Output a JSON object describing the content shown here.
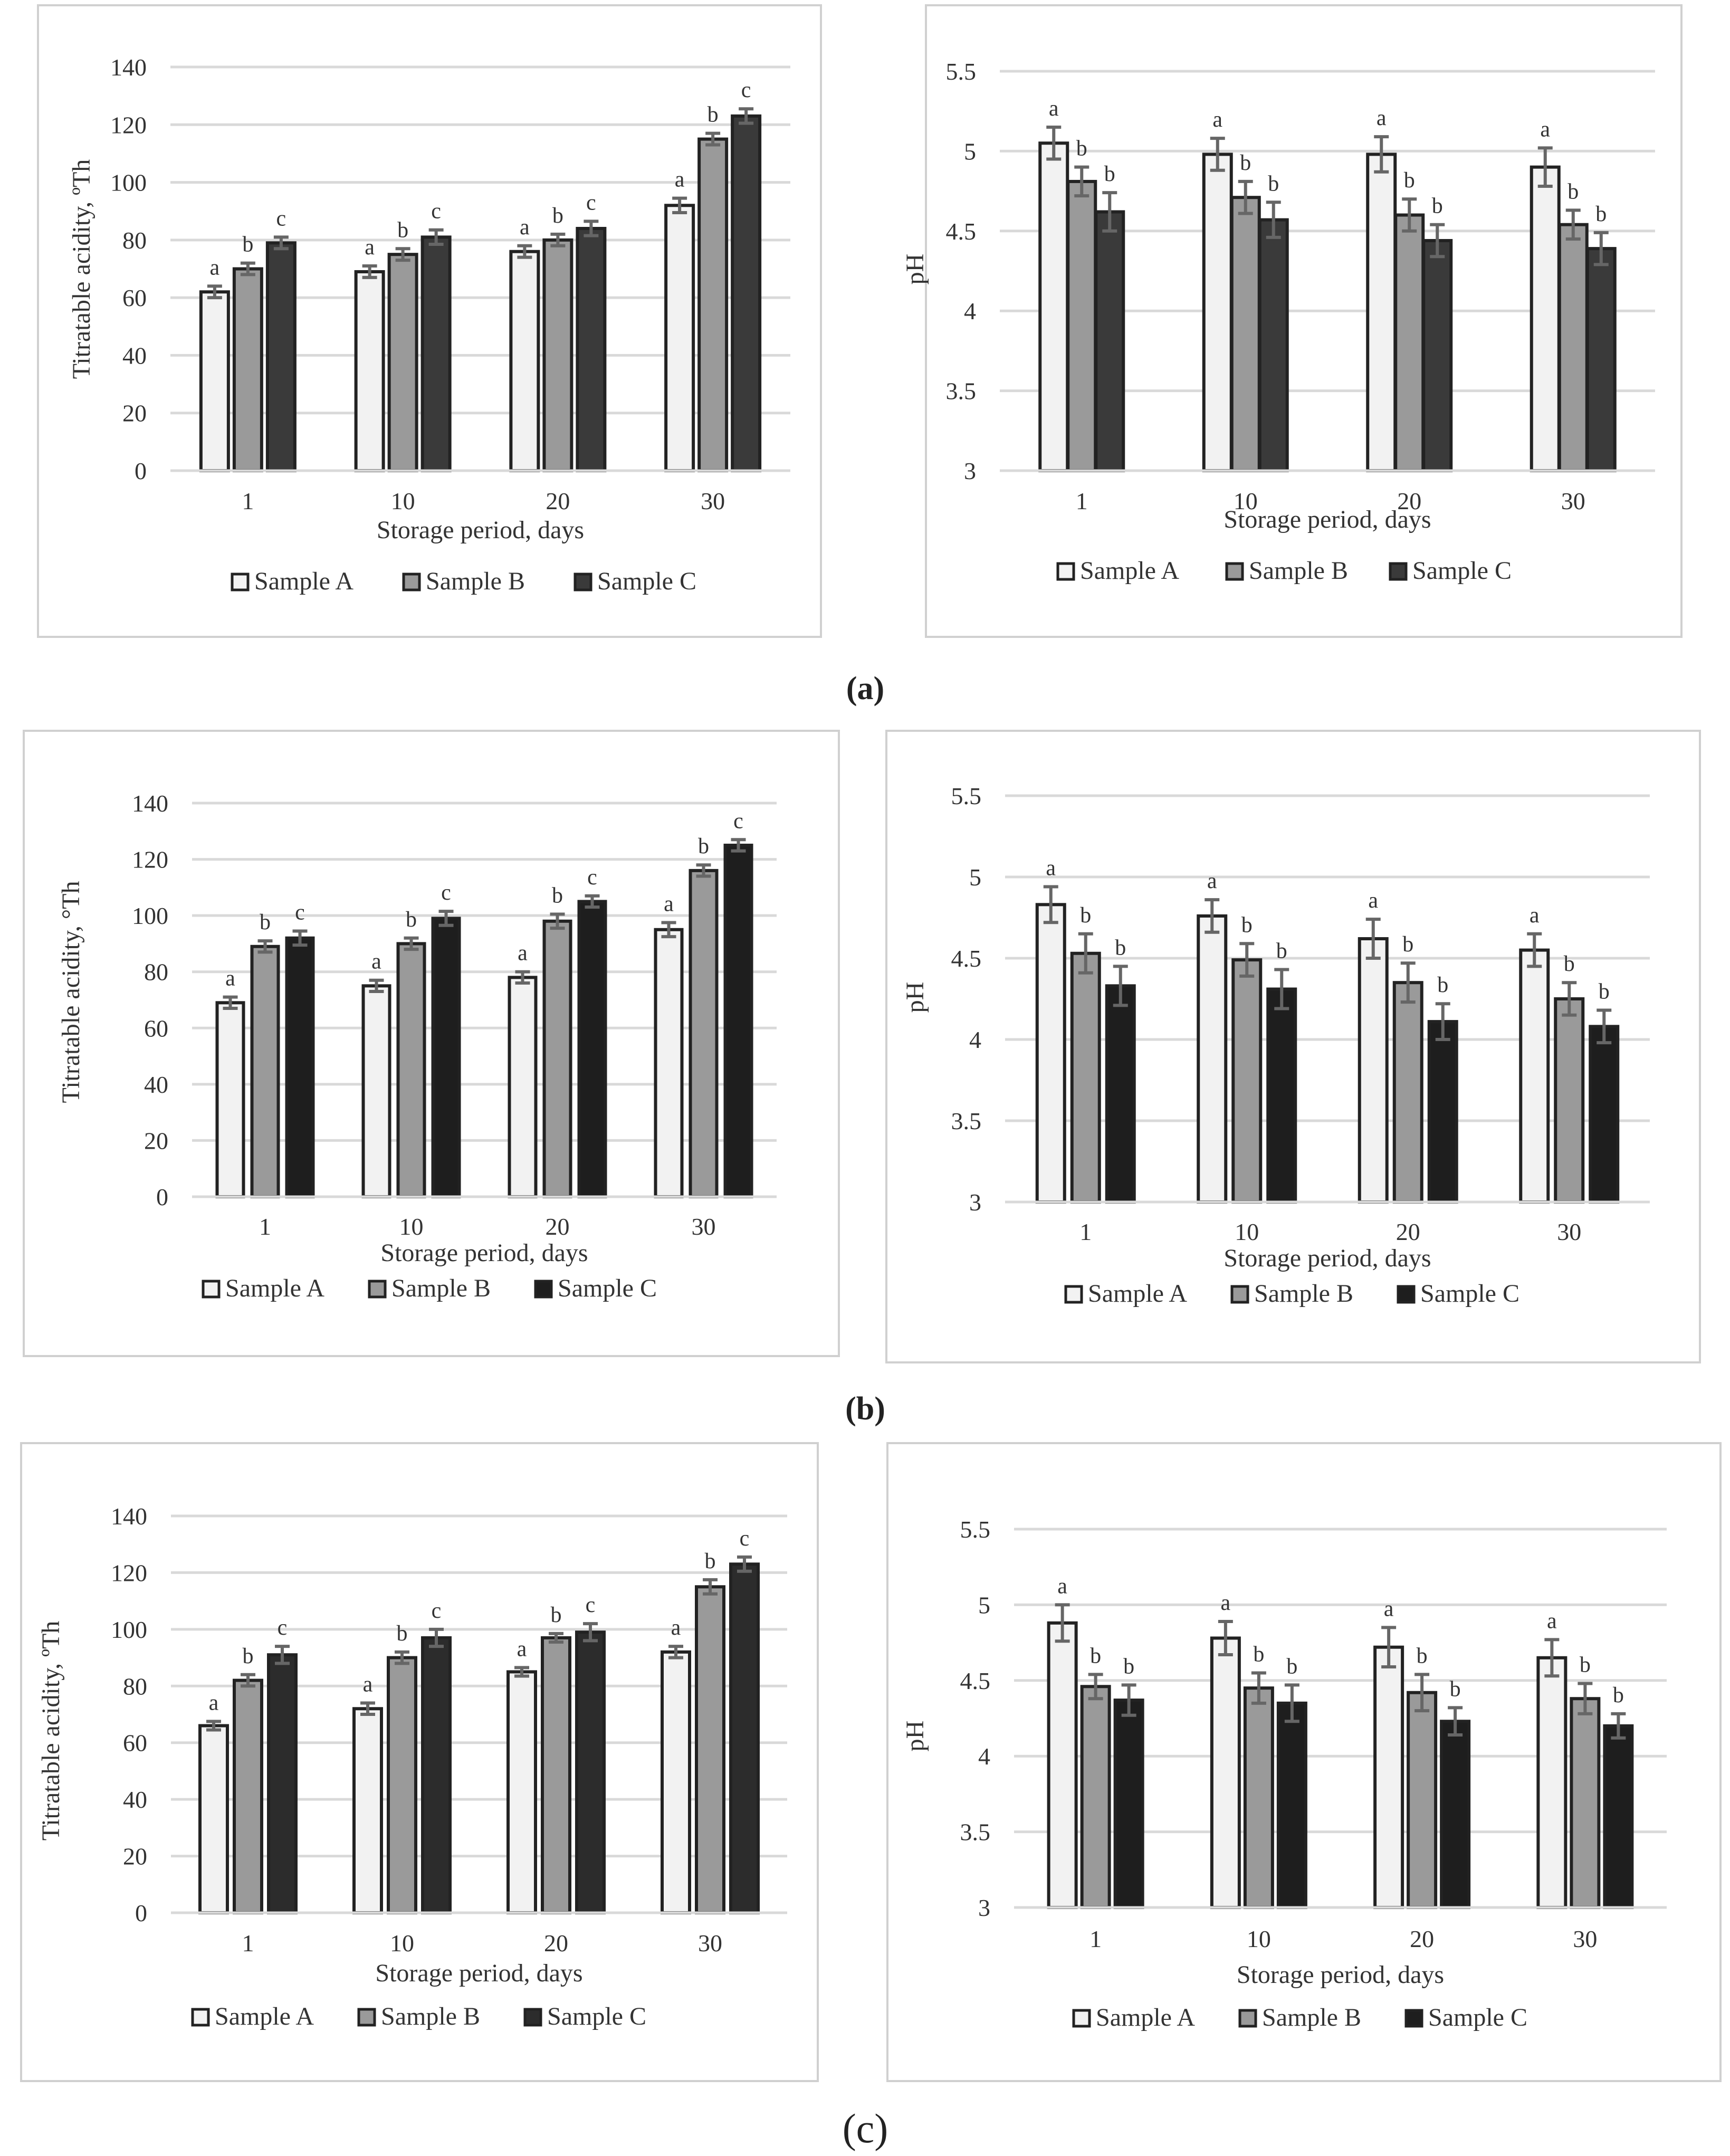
{
  "figure": {
    "panel_labels": [
      "(a)",
      "(b)",
      "(c)"
    ]
  },
  "colors": {
    "sample_a": "#f2f2f2",
    "sample_b": "#9a9a9a",
    "sample_c_a": "#3a3a3a",
    "sample_c_b": "#1e1e1e",
    "sample_c_c": "#2c2c2c",
    "bar_stroke": "#222222",
    "error_bar": "#666666",
    "grid": "#d9d9d9",
    "frame": "#d0d0d0",
    "text": "#333333"
  },
  "chart_data": [
    {
      "id": "a-acidity",
      "type": "bar",
      "title": "",
      "xlabel": "Storage period, days",
      "ylabel": "Titratable acidity, ºTh",
      "categories": [
        "1",
        "10",
        "20",
        "30"
      ],
      "ylim": [
        0,
        140
      ],
      "yticks": [
        "0",
        "20",
        "40",
        "60",
        "80",
        "100",
        "120",
        "140"
      ],
      "grid": true,
      "legend": [
        "Sample A",
        "Sample B",
        "Sample C"
      ],
      "legend_position": "bottom",
      "series": [
        {
          "name": "Sample A",
          "values": [
            62,
            69,
            76,
            92
          ],
          "errors": [
            2,
            2,
            2,
            2.5
          ],
          "letters": [
            "a",
            "a",
            "a",
            "a"
          ]
        },
        {
          "name": "Sample B",
          "values": [
            70,
            75,
            80,
            115
          ],
          "errors": [
            2,
            2,
            2,
            2
          ],
          "letters": [
            "b",
            "b",
            "b",
            "b"
          ]
        },
        {
          "name": "Sample C",
          "values": [
            79,
            81,
            84,
            123
          ],
          "errors": [
            2,
            2.5,
            2.5,
            2.5
          ],
          "letters": [
            "c",
            "c",
            "c",
            "c"
          ]
        }
      ]
    },
    {
      "id": "a-ph",
      "type": "bar",
      "title": "",
      "xlabel": "Storage period, days",
      "ylabel": "pH",
      "categories": [
        "1",
        "10",
        "20",
        "30"
      ],
      "ylim": [
        3,
        5.5
      ],
      "yticks": [
        "3",
        "3.5",
        "4",
        "4.5",
        "5",
        "5.5"
      ],
      "grid": true,
      "legend": [
        "Sample A",
        "Sample B",
        "Sample C"
      ],
      "legend_position": "bottom",
      "series": [
        {
          "name": "Sample A",
          "values": [
            5.05,
            4.98,
            4.98,
            4.9
          ],
          "errors": [
            0.1,
            0.1,
            0.11,
            0.12
          ],
          "letters": [
            "a",
            "a",
            "a",
            "a"
          ]
        },
        {
          "name": "Sample B",
          "values": [
            4.81,
            4.71,
            4.6,
            4.54
          ],
          "errors": [
            0.09,
            0.1,
            0.1,
            0.09
          ],
          "letters": [
            "b",
            "b",
            "b",
            "b"
          ]
        },
        {
          "name": "Sample C",
          "values": [
            4.62,
            4.57,
            4.44,
            4.39
          ],
          "errors": [
            0.12,
            0.11,
            0.1,
            0.1
          ],
          "letters": [
            "b",
            "b",
            "b",
            "b"
          ]
        }
      ]
    },
    {
      "id": "b-acidity",
      "type": "bar",
      "title": "",
      "xlabel": "Storage period, days",
      "ylabel": "Titratable acidity, °Th",
      "categories": [
        "1",
        "10",
        "20",
        "30"
      ],
      "ylim": [
        0,
        140
      ],
      "yticks": [
        "0",
        "20",
        "40",
        "60",
        "80",
        "100",
        "120",
        "140"
      ],
      "grid": true,
      "legend": [
        "Sample A",
        "Sample B",
        "Sample C"
      ],
      "legend_position": "bottom",
      "series": [
        {
          "name": "Sample A",
          "values": [
            69,
            75,
            78,
            95
          ],
          "errors": [
            2,
            2,
            2,
            2.5
          ],
          "letters": [
            "a",
            "a",
            "a",
            "a"
          ]
        },
        {
          "name": "Sample B",
          "values": [
            89,
            90,
            98,
            116
          ],
          "errors": [
            2,
            2,
            2.5,
            2
          ],
          "letters": [
            "b",
            "b",
            "b",
            "b"
          ]
        },
        {
          "name": "Sample C",
          "values": [
            92,
            99,
            105,
            125
          ],
          "errors": [
            2.5,
            2.5,
            2,
            2
          ],
          "letters": [
            "c",
            "c",
            "c",
            "c"
          ]
        }
      ]
    },
    {
      "id": "b-ph",
      "type": "bar",
      "title": "",
      "xlabel": "Storage period, days",
      "ylabel": "pH",
      "categories": [
        "1",
        "10",
        "20",
        "30"
      ],
      "ylim": [
        3,
        5.5
      ],
      "yticks": [
        "3",
        "3.5",
        "4",
        "4.5",
        "5",
        "5.5"
      ],
      "grid": true,
      "legend": [
        "Sample A",
        "Sample B",
        "Sample C"
      ],
      "legend_position": "bottom",
      "series": [
        {
          "name": "Sample A",
          "values": [
            4.83,
            4.76,
            4.62,
            4.55
          ],
          "errors": [
            0.11,
            0.1,
            0.12,
            0.1
          ],
          "letters": [
            "a",
            "a",
            "a",
            "a"
          ]
        },
        {
          "name": "Sample B",
          "values": [
            4.53,
            4.49,
            4.35,
            4.25
          ],
          "errors": [
            0.12,
            0.1,
            0.12,
            0.1
          ],
          "letters": [
            "b",
            "b",
            "b",
            "b"
          ]
        },
        {
          "name": "Sample C",
          "values": [
            4.33,
            4.31,
            4.11,
            4.08
          ],
          "errors": [
            0.12,
            0.12,
            0.11,
            0.1
          ],
          "letters": [
            "b",
            "b",
            "b",
            "b"
          ]
        }
      ]
    },
    {
      "id": "c-acidity",
      "type": "bar",
      "title": "",
      "xlabel": "Storage period, days",
      "ylabel": "Titratable acidity, ºTh",
      "categories": [
        "1",
        "10",
        "20",
        "30"
      ],
      "ylim": [
        0,
        140
      ],
      "yticks": [
        "0",
        "20",
        "40",
        "60",
        "80",
        "100",
        "120",
        "140"
      ],
      "grid": true,
      "legend": [
        "Sample A",
        "Sample B",
        "Sample C"
      ],
      "legend_position": "bottom",
      "series": [
        {
          "name": "Sample A",
          "values": [
            66,
            72,
            85,
            92
          ],
          "errors": [
            1.5,
            2,
            1.5,
            2
          ],
          "letters": [
            "a",
            "a",
            "a",
            "a"
          ]
        },
        {
          "name": "Sample B",
          "values": [
            82,
            90,
            97,
            115
          ],
          "errors": [
            2,
            2,
            1.5,
            2.5
          ],
          "letters": [
            "b",
            "b",
            "b",
            "b"
          ]
        },
        {
          "name": "Sample C",
          "values": [
            91,
            97,
            99,
            123
          ],
          "errors": [
            3,
            3,
            3,
            2.5
          ],
          "letters": [
            "c",
            "c",
            "c",
            "c"
          ]
        }
      ]
    },
    {
      "id": "c-ph",
      "type": "bar",
      "title": "",
      "xlabel": "Storage period, days",
      "ylabel": "pH",
      "categories": [
        "1",
        "10",
        "20",
        "30"
      ],
      "ylim": [
        3,
        5.5
      ],
      "yticks": [
        "3",
        "3.5",
        "4",
        "4.5",
        "5",
        "5.5"
      ],
      "grid": true,
      "legend": [
        "Sample A",
        "Sample B",
        "Sample C"
      ],
      "legend_position": "bottom",
      "series": [
        {
          "name": "Sample A",
          "values": [
            4.88,
            4.78,
            4.72,
            4.65
          ],
          "errors": [
            0.12,
            0.11,
            0.13,
            0.12
          ],
          "letters": [
            "a",
            "a",
            "a",
            "a"
          ]
        },
        {
          "name": "Sample B",
          "values": [
            4.46,
            4.45,
            4.42,
            4.38
          ],
          "errors": [
            0.08,
            0.1,
            0.12,
            0.1
          ],
          "letters": [
            "b",
            "b",
            "b",
            "b"
          ]
        },
        {
          "name": "Sample C",
          "values": [
            4.37,
            4.35,
            4.23,
            4.2
          ],
          "errors": [
            0.1,
            0.12,
            0.09,
            0.08
          ],
          "letters": [
            "b",
            "b",
            "b",
            "b"
          ]
        }
      ]
    }
  ]
}
